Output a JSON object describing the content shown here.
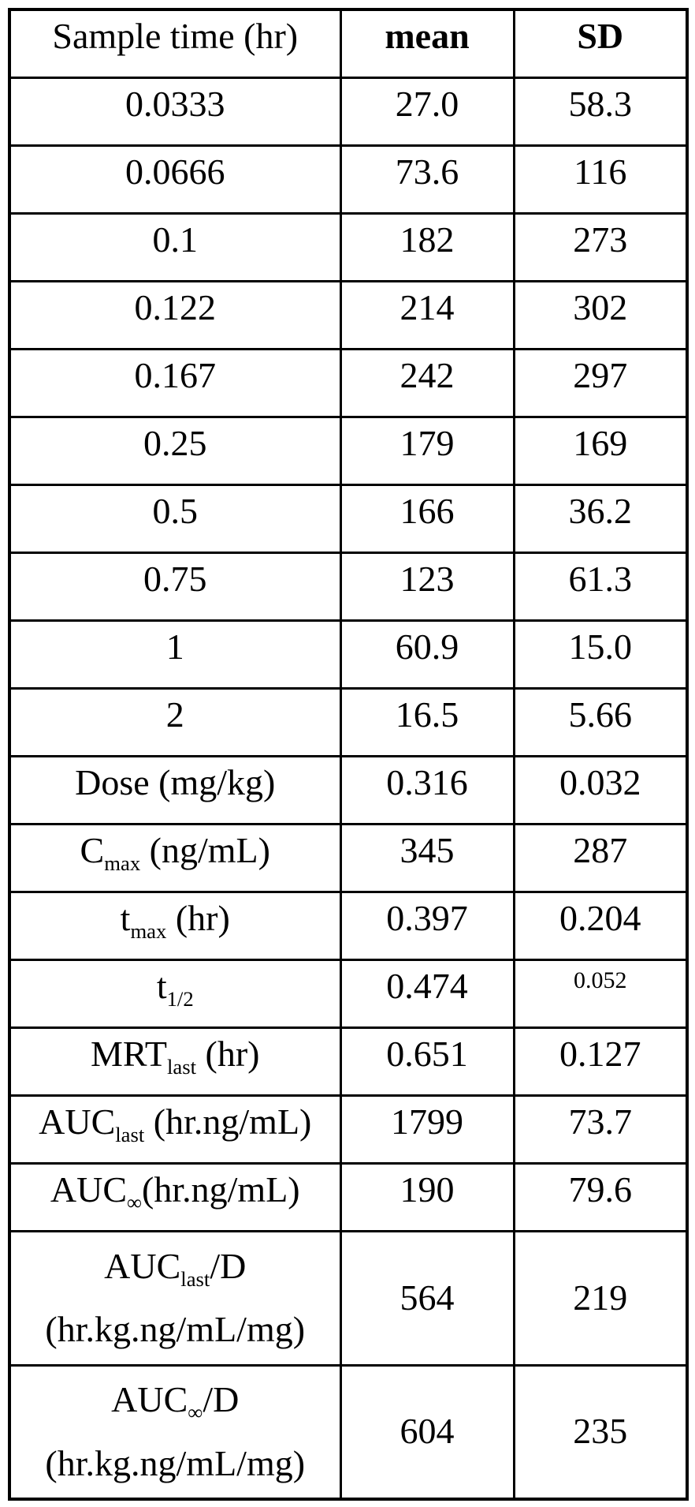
{
  "table": {
    "columns": [
      {
        "label": "Sample time (hr)",
        "bold": false
      },
      {
        "label": "mean",
        "bold": true
      },
      {
        "label": "SD",
        "bold": true
      }
    ],
    "rows": [
      {
        "label": [
          {
            "text": "0.0333"
          }
        ],
        "mean": "27.0",
        "sd": "58.3"
      },
      {
        "label": [
          {
            "text": "0.0666"
          }
        ],
        "mean": "73.6",
        "sd": "116"
      },
      {
        "label": [
          {
            "text": "0.1"
          }
        ],
        "mean": "182",
        "sd": "273"
      },
      {
        "label": [
          {
            "text": "0.122"
          }
        ],
        "mean": "214",
        "sd": "302"
      },
      {
        "label": [
          {
            "text": "0.167"
          }
        ],
        "mean": "242",
        "sd": "297"
      },
      {
        "label": [
          {
            "text": "0.25"
          }
        ],
        "mean": "179",
        "sd": "169"
      },
      {
        "label": [
          {
            "text": "0.5"
          }
        ],
        "mean": "166",
        "sd": "36.2"
      },
      {
        "label": [
          {
            "text": "0.75"
          }
        ],
        "mean": "123",
        "sd": "61.3"
      },
      {
        "label": [
          {
            "text": "1"
          }
        ],
        "mean": "60.9",
        "sd": "15.0"
      },
      {
        "label": [
          {
            "text": "2"
          }
        ],
        "mean": "16.5",
        "sd": "5.66"
      },
      {
        "label": [
          {
            "text": "Dose (mg/kg)"
          }
        ],
        "mean": "0.316",
        "sd": "0.032"
      },
      {
        "label": [
          {
            "text": "C"
          },
          {
            "sub": "max"
          },
          {
            "text": " (ng/mL)"
          }
        ],
        "mean": "345",
        "sd": "287"
      },
      {
        "label": [
          {
            "text": "t"
          },
          {
            "sub": "max"
          },
          {
            "text": " (hr)"
          }
        ],
        "mean": "0.397",
        "sd": "0.204"
      },
      {
        "label": [
          {
            "text": "t"
          },
          {
            "sub": "1/2"
          }
        ],
        "mean": "0.474",
        "sd": "0.052",
        "sd_small": true
      },
      {
        "label": [
          {
            "text": "MRT"
          },
          {
            "sub": "last"
          },
          {
            "text": " (hr)"
          }
        ],
        "mean": "0.651",
        "sd": "0.127"
      },
      {
        "label": [
          {
            "text": "AUC"
          },
          {
            "sub": "last"
          },
          {
            "text": " (hr.ng/mL)"
          }
        ],
        "mean": "1799",
        "sd": "73.7"
      },
      {
        "label": [
          {
            "text": "AUC"
          },
          {
            "sub": "∞"
          },
          {
            "text": "(hr.ng/mL)"
          }
        ],
        "mean": "190",
        "sd": "79.6"
      },
      {
        "label": [
          {
            "text": "AUC"
          },
          {
            "sub": "last"
          },
          {
            "text": "/D"
          },
          {
            "break": true
          },
          {
            "text": "(hr.kg.ng/mL/mg)"
          }
        ],
        "mean": "564",
        "sd": "219",
        "tall": true
      },
      {
        "label": [
          {
            "text": "AUC"
          },
          {
            "sub": "∞"
          },
          {
            "text": "/D"
          },
          {
            "break": true
          },
          {
            "text": "(hr.kg.ng/mL/mg)"
          }
        ],
        "mean": "604",
        "sd": "235",
        "tall": true
      }
    ]
  }
}
